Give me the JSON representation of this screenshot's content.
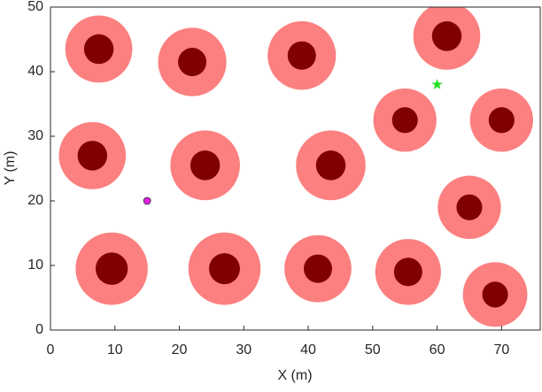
{
  "chart_data": {
    "type": "obstacle-map",
    "xlabel": "X (m)",
    "ylabel": "Y (m)",
    "xlim": [
      0,
      76
    ],
    "ylim": [
      0,
      50
    ],
    "xticks": [
      0,
      10,
      20,
      30,
      40,
      50,
      60,
      70
    ],
    "yticks": [
      0,
      10,
      20,
      30,
      40,
      50
    ],
    "obstacles": {
      "x": [
        7.5,
        22,
        39,
        61.5,
        55,
        70,
        6.5,
        24,
        43.5,
        65,
        9.5,
        27,
        41.5,
        55.5,
        69
      ],
      "y": [
        43.5,
        41.5,
        42.5,
        45.5,
        32.5,
        32.5,
        27,
        25.5,
        25.5,
        19,
        9.5,
        9.5,
        9.5,
        9,
        5.5
      ],
      "inner_radius": [
        2.3,
        2.2,
        2.2,
        2.3,
        2,
        2,
        2.3,
        2.3,
        2.3,
        2,
        2.5,
        2.4,
        2.2,
        2.2,
        2
      ],
      "outer_radius": [
        5.2,
        5.3,
        5.3,
        5.2,
        4.9,
        4.9,
        5.2,
        5.4,
        5.4,
        4.9,
        5.6,
        5.6,
        5.2,
        5.1,
        5
      ],
      "outer_color": "#fc8080",
      "inner_color": "#800000"
    },
    "start": {
      "x": 15,
      "y": 20,
      "color": "#e020e0"
    },
    "goal": {
      "x": 60,
      "y": 38,
      "color": "#20e020"
    }
  }
}
